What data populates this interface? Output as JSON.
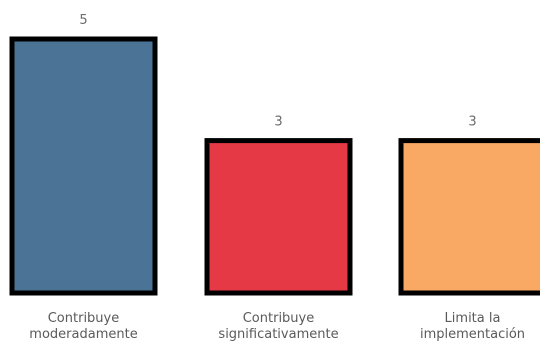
{
  "chart_data": {
    "type": "bar",
    "categories": [
      [
        "Contribuye",
        "moderadamente"
      ],
      [
        "Contribuye",
        "significativamente"
      ],
      [
        "Limita la",
        "implementación"
      ]
    ],
    "values": [
      5,
      3,
      3
    ],
    "data_labels": [
      "5",
      "3",
      "3"
    ],
    "colors": [
      "#4a7396",
      "#e63946",
      "#f9a963"
    ],
    "bar_border_color": "#000000",
    "grid": false,
    "legend": "none",
    "ylim": [
      0,
      5
    ]
  }
}
